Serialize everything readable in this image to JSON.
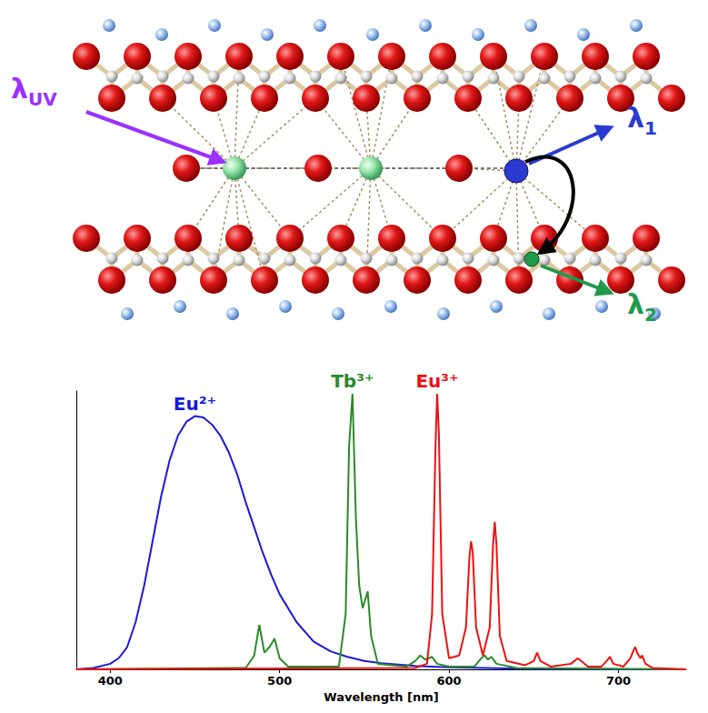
{
  "diagram": {
    "annotations": [
      {
        "symbol": "λ",
        "subscript": "UV"
      },
      {
        "symbol": "λ",
        "subscript": "1"
      },
      {
        "symbol": "λ",
        "subscript": "2"
      }
    ]
  },
  "chart_data": {
    "type": "line",
    "x_label": "Wavelength [nm]",
    "xlim": [
      380,
      740
    ],
    "xticks": [
      400,
      500,
      600,
      700
    ],
    "ylim": [
      0,
      1
    ],
    "tick_labels": "x",
    "grid": false,
    "series": [
      {
        "name": "Eu²⁺",
        "color": "#1a1adb",
        "x": [
          380,
          390,
          400,
          405,
          410,
          415,
          420,
          425,
          430,
          435,
          440,
          445,
          450,
          455,
          460,
          465,
          470,
          475,
          480,
          485,
          490,
          495,
          500,
          510,
          520,
          530,
          540,
          550,
          560,
          580,
          600,
          650,
          700,
          740
        ],
        "values": [
          0,
          0.005,
          0.02,
          0.04,
          0.08,
          0.17,
          0.3,
          0.46,
          0.62,
          0.75,
          0.84,
          0.89,
          0.91,
          0.905,
          0.88,
          0.84,
          0.78,
          0.7,
          0.6,
          0.51,
          0.42,
          0.34,
          0.27,
          0.17,
          0.1,
          0.065,
          0.045,
          0.03,
          0.022,
          0.012,
          0.007,
          0.002,
          0,
          0
        ]
      },
      {
        "name": "Tb³⁺",
        "color": "#2a8a2a",
        "x": [
          380,
          480,
          485,
          488,
          491,
          494,
          497,
          500,
          505,
          535,
          539,
          541,
          543,
          545,
          546,
          547,
          549,
          551,
          552,
          554,
          558,
          575,
          580,
          583,
          586,
          590,
          593,
          600,
          615,
          619,
          621,
          623,
          625,
          628,
          640,
          740
        ],
        "values": [
          0,
          0.005,
          0.05,
          0.16,
          0.06,
          0.08,
          0.11,
          0.04,
          0.01,
          0.01,
          0.2,
          0.8,
          0.99,
          0.55,
          0.42,
          0.3,
          0.22,
          0.26,
          0.28,
          0.12,
          0.02,
          0.01,
          0.03,
          0.05,
          0.035,
          0.045,
          0.02,
          0.01,
          0.01,
          0.04,
          0.05,
          0.035,
          0.045,
          0.02,
          0.005,
          0
        ]
      },
      {
        "name": "Eu³⁺",
        "color": "#ee1111",
        "x": [
          380,
          580,
          587,
          590,
          592,
          593,
          594,
          596,
          600,
          606,
          610,
          612,
          613,
          614,
          616,
          620,
          624,
          626,
          627,
          628,
          630,
          634,
          645,
          650,
          652,
          654,
          660,
          672,
          676,
          678,
          682,
          690,
          693,
          695,
          697,
          703,
          707,
          709,
          710,
          711,
          713,
          714,
          716,
          720,
          740
        ],
        "values": [
          0,
          0.005,
          0.02,
          0.2,
          0.8,
          0.99,
          0.85,
          0.2,
          0.04,
          0.05,
          0.15,
          0.4,
          0.46,
          0.42,
          0.15,
          0.05,
          0.15,
          0.45,
          0.53,
          0.45,
          0.12,
          0.03,
          0.015,
          0.03,
          0.06,
          0.03,
          0.01,
          0.02,
          0.04,
          0.03,
          0.01,
          0.01,
          0.03,
          0.045,
          0.02,
          0.01,
          0.04,
          0.07,
          0.08,
          0.06,
          0.04,
          0.05,
          0.02,
          0.005,
          0
        ]
      }
    ]
  }
}
